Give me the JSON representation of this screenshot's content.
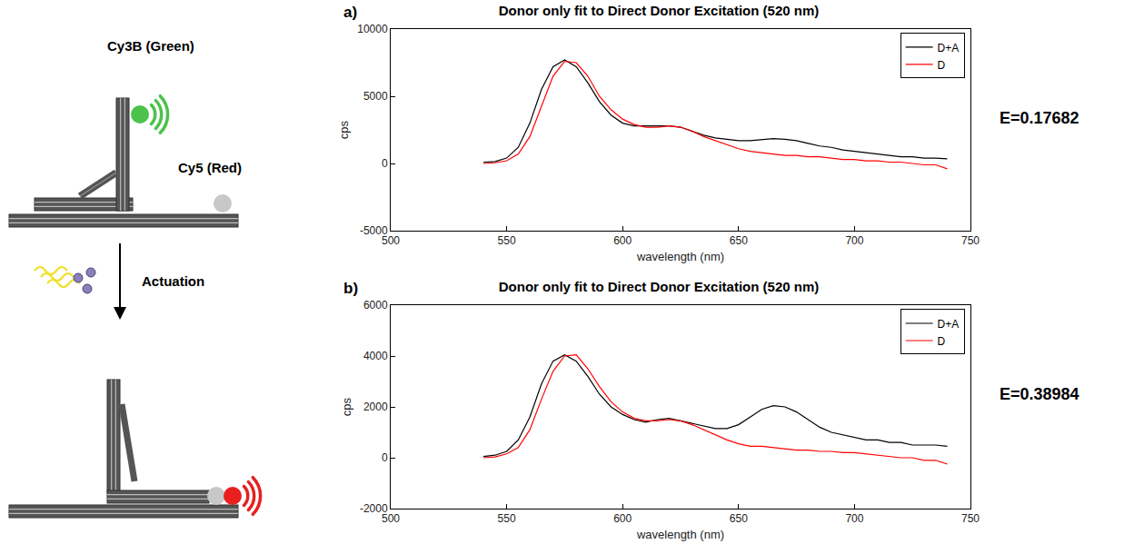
{
  "diagram": {
    "donor_label": "Cy3B (Green)",
    "acceptor_label": "Cy5 (Red)",
    "arrow_label": "Actuation"
  },
  "chart_data": [
    {
      "type": "line",
      "panel": "a)",
      "title": "Donor only fit to Direct Donor Excitation (520 nm)",
      "x_label": "wavelength (nm)",
      "y_label": "cps",
      "annotations": [
        "E=0.17682"
      ],
      "x": [
        540,
        545,
        550,
        555,
        560,
        565,
        570,
        575,
        580,
        585,
        590,
        595,
        600,
        605,
        610,
        615,
        620,
        625,
        630,
        635,
        640,
        645,
        650,
        655,
        660,
        665,
        670,
        675,
        680,
        685,
        690,
        695,
        700,
        705,
        710,
        715,
        720,
        725,
        730,
        735,
        740
      ],
      "series": [
        {
          "name": "D+A",
          "color": "#000000",
          "values": [
            100,
            150,
            400,
            1200,
            3000,
            5500,
            7200,
            7700,
            7200,
            6000,
            4600,
            3600,
            3000,
            2800,
            2800,
            2800,
            2800,
            2700,
            2400,
            2100,
            1900,
            1800,
            1700,
            1700,
            1800,
            1850,
            1800,
            1700,
            1500,
            1300,
            1200,
            1000,
            900,
            800,
            700,
            600,
            500,
            500,
            400,
            400,
            350
          ]
        },
        {
          "name": "D",
          "color": "#ff0000",
          "values": [
            0,
            50,
            200,
            700,
            2000,
            4300,
            6500,
            7600,
            7500,
            6500,
            5000,
            4000,
            3300,
            2900,
            2700,
            2700,
            2800,
            2700,
            2400,
            2000,
            1700,
            1400,
            1100,
            900,
            800,
            700,
            600,
            600,
            500,
            500,
            400,
            300,
            300,
            200,
            200,
            100,
            100,
            0,
            -100,
            -100,
            -400
          ]
        }
      ],
      "xlim": [
        500,
        750
      ],
      "xticks": [
        500,
        550,
        600,
        650,
        700,
        750
      ],
      "ylim": [
        -5000,
        10000
      ],
      "yticks": [
        -5000,
        0,
        5000,
        10000
      ],
      "grid": false,
      "legend": "upper right"
    },
    {
      "type": "line",
      "panel": "b)",
      "title": "Donor only fit to Direct Donor Excitation (520 nm)",
      "x_label": "wavelength (nm)",
      "y_label": "cps",
      "annotations": [
        "E=0.38984"
      ],
      "x": [
        540,
        545,
        550,
        555,
        560,
        565,
        570,
        575,
        580,
        585,
        590,
        595,
        600,
        605,
        610,
        615,
        620,
        625,
        630,
        635,
        640,
        645,
        650,
        655,
        660,
        665,
        670,
        675,
        680,
        685,
        690,
        695,
        700,
        705,
        710,
        715,
        720,
        725,
        730,
        735,
        740
      ],
      "series": [
        {
          "name": "D+A",
          "color": "#000000",
          "values": [
            50,
            100,
            250,
            700,
            1600,
            2900,
            3800,
            4050,
            3800,
            3200,
            2500,
            2000,
            1700,
            1500,
            1400,
            1500,
            1550,
            1450,
            1350,
            1250,
            1150,
            1150,
            1300,
            1600,
            1900,
            2050,
            2000,
            1800,
            1500,
            1200,
            1000,
            900,
            800,
            700,
            700,
            600,
            600,
            500,
            500,
            500,
            450
          ]
        },
        {
          "name": "D",
          "color": "#ff0000",
          "values": [
            0,
            30,
            150,
            400,
            1100,
            2300,
            3400,
            4000,
            4050,
            3500,
            2800,
            2200,
            1800,
            1550,
            1450,
            1450,
            1500,
            1450,
            1300,
            1100,
            900,
            700,
            550,
            450,
            450,
            400,
            350,
            300,
            300,
            250,
            250,
            200,
            200,
            150,
            100,
            50,
            0,
            0,
            -100,
            -100,
            -250
          ]
        }
      ],
      "xlim": [
        500,
        750
      ],
      "xticks": [
        500,
        550,
        600,
        650,
        700,
        750
      ],
      "ylim": [
        -2000,
        6000
      ],
      "yticks": [
        -2000,
        0,
        2000,
        4000,
        6000
      ],
      "grid": false,
      "legend": "upper right"
    }
  ]
}
